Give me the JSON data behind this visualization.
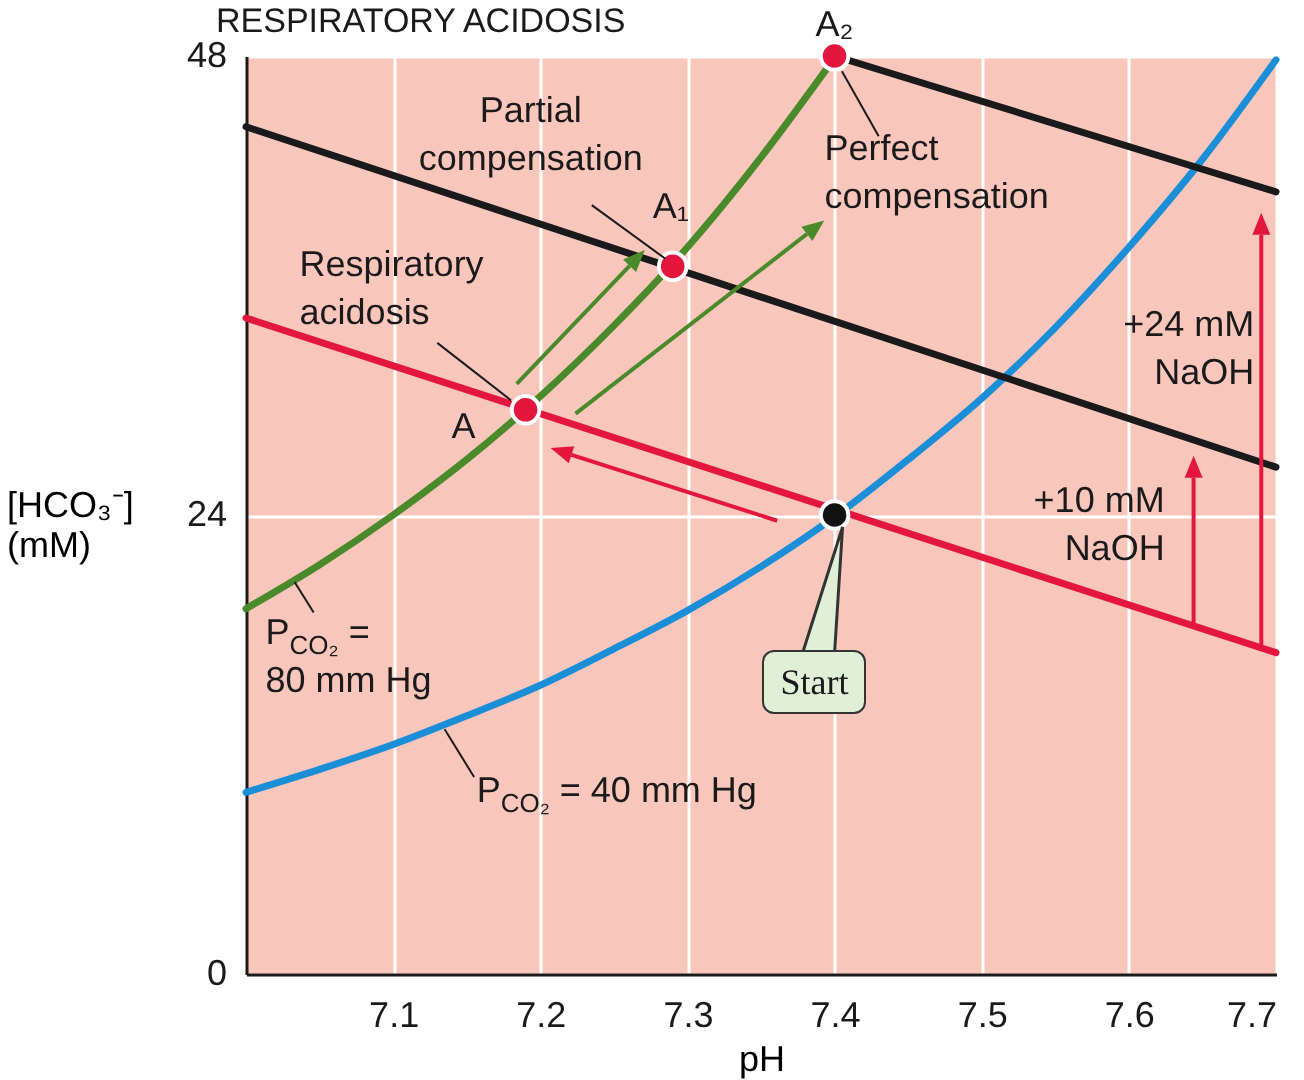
{
  "chart_data": {
    "type": "line",
    "title": "RESPIRATORY ACIDOSIS",
    "xlabel": "pH",
    "ylabel": "[HCO₃⁻] (mM)",
    "xlim": [
      7.0,
      7.7
    ],
    "ylim": [
      0,
      48
    ],
    "xticks": [
      7.1,
      7.2,
      7.3,
      7.4,
      7.5,
      7.6,
      7.7
    ],
    "yticks": [
      0,
      24,
      48
    ],
    "grid": true,
    "line_style": "solid",
    "series": [
      {
        "color": "#1a8fd8",
        "x": [
          7.0,
          7.05,
          7.1,
          7.15,
          7.2,
          7.25,
          7.3,
          7.35,
          7.4,
          7.45,
          7.5,
          7.55,
          7.6,
          7.65,
          7.7
        ],
        "values": [
          9.5,
          10.7,
          12.0,
          13.5,
          15.1,
          17.0,
          19.0,
          21.3,
          23.9,
          26.9,
          30.1,
          33.8,
          38.0,
          42.6,
          47.8
        ]
      },
      {
        "color": "#4a8a2a",
        "x": [
          7.0,
          7.05,
          7.1,
          7.15,
          7.2,
          7.25,
          7.3,
          7.35,
          7.4
        ],
        "values": [
          19.1,
          21.4,
          24.0,
          26.9,
          30.2,
          33.9,
          38.0,
          42.7,
          47.9
        ]
      },
      {
        "color": "#e3173e",
        "x": [
          7.0,
          7.7
        ],
        "values": [
          34.3,
          16.8
        ]
      },
      {
        "color": "#1a1a1a",
        "x": [
          7.0,
          7.7
        ],
        "values": [
          44.3,
          26.5
        ]
      },
      {
        "color": "#1a1a1a",
        "x": [
          7.4,
          7.7
        ],
        "values": [
          48.0,
          40.9
        ]
      },
      {
        "type": "scatter",
        "marker": "circle",
        "color": "#e3173e",
        "x": [
          7.19,
          7.29,
          7.4
        ],
        "values": [
          29.5,
          37.0,
          48.0
        ]
      },
      {
        "type": "scatter",
        "marker": "circle",
        "color": "#111111",
        "x": [
          7.4
        ],
        "values": [
          24
        ]
      }
    ],
    "annotations": [
      {
        "text": "Partial compensation",
        "x": 7.29,
        "y": 37.0
      },
      {
        "text": "Perfect compensation",
        "x": 7.4,
        "y": 48.0
      },
      {
        "text": "Respiratory acidosis",
        "x": 7.19,
        "y": 29.5
      },
      {
        "text": "A",
        "x": 7.19,
        "y": 29.5
      },
      {
        "text": "A₁",
        "x": 7.29,
        "y": 37.0
      },
      {
        "text": "A₂",
        "x": 7.4,
        "y": 48.0
      },
      "+24 mM NaOH",
      {
        "text": "+10 mM NaOH",
        "x": 7.644,
        "y": 18.2
      },
      {
        "text": "P$_{CO₂}$ = 80 mm Hg",
        "x": 7.05,
        "y": 21.4
      },
      {
        "text": "P$_{CO₂}$ = 40 mm Hg",
        "x": 7.15,
        "y": 13.5
      },
      {
        "text": "Start",
        "x": 7.4,
        "y": 24
      }
    ]
  }
}
